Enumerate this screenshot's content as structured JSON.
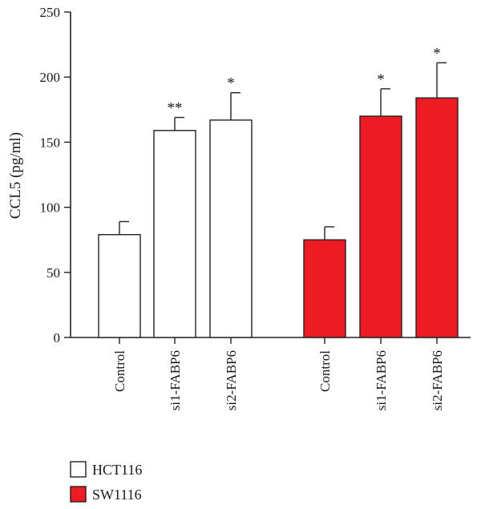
{
  "chart_data": {
    "type": "bar",
    "ylabel": "CCL5 (pg/ml)",
    "ylim": [
      0,
      250
    ],
    "yticks": [
      0,
      50,
      100,
      150,
      200,
      250
    ],
    "grid": false,
    "legend_position": "bottom-left",
    "series": [
      {
        "name": "HCT116",
        "color": "#ffffff",
        "categories": [
          "Control",
          "si1-FABP6",
          "si2-FABP6"
        ],
        "values": [
          79,
          159,
          167
        ],
        "errors": [
          10,
          10,
          21
        ],
        "significance": [
          "",
          "**",
          "*"
        ]
      },
      {
        "name": "SW1116",
        "color": "#ed1c24",
        "categories": [
          "Control",
          "si1-FABP6",
          "si2-FABP6"
        ],
        "values": [
          75,
          170,
          184
        ],
        "errors": [
          10,
          21,
          27
        ],
        "significance": [
          "",
          "*",
          "*"
        ]
      }
    ]
  }
}
